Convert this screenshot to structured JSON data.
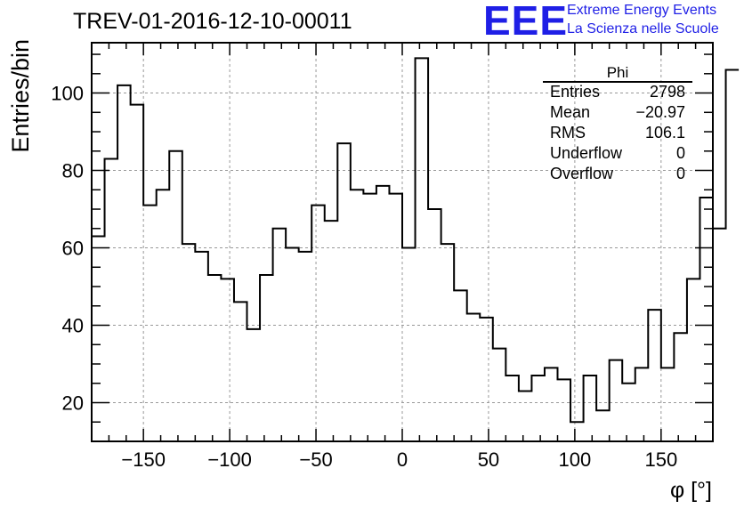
{
  "chart_data": {
    "type": "bar",
    "title": "TREV-01-2016-12-10-00011",
    "xlabel": "φ [°]",
    "ylabel": "Entries/bin",
    "xlim": [
      -180,
      180
    ],
    "ylim": [
      10,
      113
    ],
    "bin_width": 7.5,
    "xticks": [
      -150,
      -100,
      -50,
      0,
      50,
      100,
      150
    ],
    "xtick_labels": [
      "−150",
      "−100",
      "−50",
      "0",
      "50",
      "100",
      "150"
    ],
    "yticks": [
      20,
      40,
      60,
      80,
      100
    ],
    "ytick_labels": [
      "20",
      "40",
      "60",
      "80",
      "100"
    ],
    "grid": true,
    "values": [
      63,
      83,
      102,
      97,
      71,
      75,
      85,
      61,
      59,
      53,
      52,
      46,
      39,
      53,
      65,
      60,
      59,
      71,
      67,
      87,
      75,
      74,
      76,
      74,
      60,
      109,
      70,
      61,
      49,
      43,
      42,
      34,
      27,
      23,
      27,
      29,
      26,
      15,
      27,
      18,
      31,
      25,
      29,
      44,
      29,
      38,
      52,
      73,
      65,
      106
    ]
  },
  "logo": {
    "mark": "EEE",
    "line1": "Extreme Energy Events",
    "line2": "La Scienza nelle Scuole",
    "color": "#1f1fe6"
  },
  "stats": {
    "title": "Phi",
    "rows": [
      {
        "key": "Entries",
        "value": "2798"
      },
      {
        "key": "Mean",
        "value": "−20.97"
      },
      {
        "key": "RMS",
        "value": "106.1"
      },
      {
        "key": "Underflow",
        "value": "0"
      },
      {
        "key": "Overflow",
        "value": "0"
      }
    ]
  }
}
